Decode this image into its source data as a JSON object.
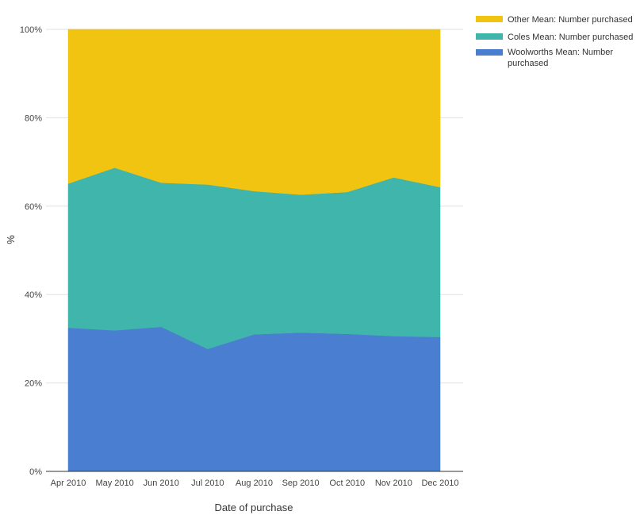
{
  "chart_data": {
    "type": "area",
    "stacked": "percent",
    "title": "",
    "xlabel": "Date of purchase",
    "ylabel": "%",
    "ylim": [
      0,
      100
    ],
    "y_ticks": [
      "0%",
      "20%",
      "40%",
      "60%",
      "80%",
      "100%"
    ],
    "grid": true,
    "legend_position": "right",
    "categories": [
      "Apr 2010",
      "May 2010",
      "Jun 2010",
      "Jul 2010",
      "Aug 2010",
      "Sep 2010",
      "Oct 2010",
      "Nov 2010",
      "Dec 2010"
    ],
    "series": [
      {
        "name": "Woolworths Mean: Number purchased",
        "color": "#4a7ed0",
        "values": [
          32.5,
          31.9,
          32.7,
          27.7,
          31.0,
          31.4,
          31.1,
          30.6,
          30.4
        ]
      },
      {
        "name": "Coles Mean: Number purchased",
        "color": "#40b5ab",
        "values": [
          32.6,
          36.8,
          32.6,
          37.2,
          32.4,
          31.2,
          32.1,
          35.9,
          33.9
        ]
      },
      {
        "name": "Other Mean: Number purchased",
        "color": "#f0c410",
        "values": [
          34.9,
          31.3,
          34.7,
          35.1,
          36.6,
          37.4,
          36.8,
          33.5,
          35.7
        ]
      }
    ],
    "legend_order": [
      2,
      1,
      0
    ]
  }
}
